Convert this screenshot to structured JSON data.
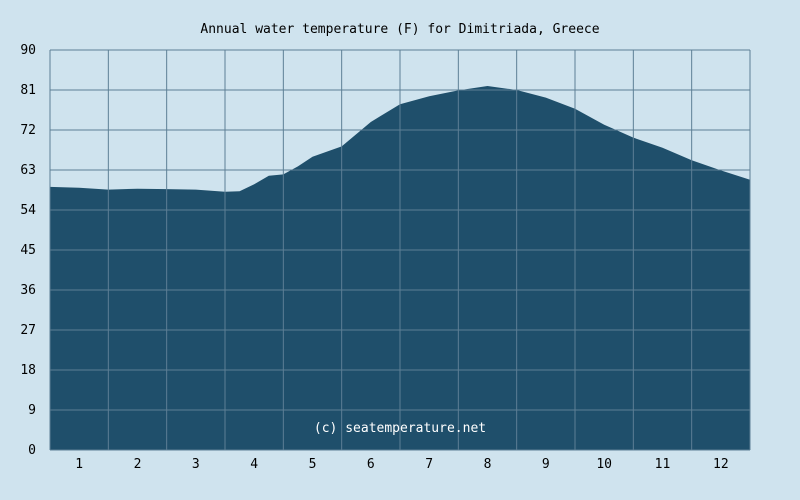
{
  "colors": {
    "background": "#cfe3ee",
    "area_fill": "#1f4f6b",
    "grid": "#5d7f95",
    "watermark_text": "#ffffff"
  },
  "chart_data": {
    "type": "area",
    "title": "Annual water temperature (F) for Dimitriada, Greece",
    "xlabel": "",
    "ylabel": "",
    "watermark": "(c) seatemperature.net",
    "grid": true,
    "xlim": [
      0.5,
      12.5
    ],
    "ylim": [
      0,
      90
    ],
    "x_ticks": [
      1,
      2,
      3,
      4,
      5,
      6,
      7,
      8,
      9,
      10,
      11,
      12
    ],
    "x_tick_labels": [
      "1",
      "2",
      "3",
      "4",
      "5",
      "6",
      "7",
      "8",
      "9",
      "10",
      "11",
      "12"
    ],
    "y_ticks": [
      0,
      9,
      18,
      27,
      36,
      45,
      54,
      63,
      72,
      81,
      90
    ],
    "y_tick_labels": [
      "0",
      "9",
      "18",
      "27",
      "36",
      "45",
      "54",
      "63",
      "72",
      "81",
      "90"
    ],
    "series": [
      {
        "x": [
          0.5,
          1.0,
          1.5,
          2.0,
          2.5,
          3.0,
          3.5,
          3.75,
          4.0,
          4.25,
          4.5,
          4.75,
          5.0,
          5.5,
          6.0,
          6.5,
          7.0,
          7.5,
          8.0,
          8.5,
          9.0,
          9.5,
          10.0,
          10.5,
          11.0,
          11.5,
          12.0,
          12.5
        ],
        "y": [
          59.2,
          59.0,
          58.6,
          58.8,
          58.7,
          58.6,
          58.1,
          58.2,
          59.8,
          61.7,
          62.0,
          63.8,
          66.0,
          68.3,
          73.8,
          77.8,
          79.6,
          80.9,
          81.9,
          81.0,
          79.3,
          76.8,
          73.2,
          70.3,
          68.0,
          65.2,
          62.9,
          60.8
        ]
      }
    ]
  }
}
